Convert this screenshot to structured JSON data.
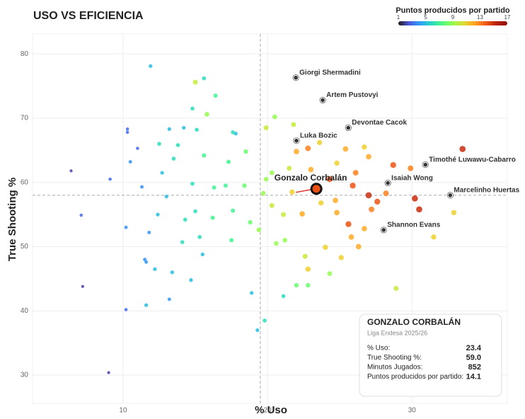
{
  "chart_data": {
    "type": "scatter",
    "title": "USO VS EFICIENCIA",
    "x_label": "% Uso",
    "y_label": "True Shooting %",
    "xlim": [
      3.73,
      36.6
    ],
    "ylim": [
      25.6,
      83.1
    ],
    "xticks": [
      10,
      20,
      30
    ],
    "yticks": [
      30,
      40,
      50,
      60,
      70,
      80
    ],
    "grid": true,
    "reference_lines": {
      "x": 19.5,
      "y": 58.0
    },
    "colorbar": {
      "title": "Puntos producidos por partido",
      "ticks": [
        1,
        5,
        9,
        13,
        17
      ],
      "lim": [
        1,
        17
      ],
      "colormap": "turbo"
    },
    "points": {
      "x": [
        11.9,
        15.6,
        15.0,
        16.4,
        14.8,
        15.8,
        10.3,
        10.3,
        11.0,
        13.2,
        14.2,
        15.1,
        17.8,
        17.6,
        12.5,
        13.8,
        13.5,
        15.6,
        17.3,
        18.5,
        19.9,
        20.5,
        21.8,
        22.0,
        22.8,
        23.6,
        25.4,
        26.7,
        27.0,
        29.9,
        33.5,
        28.7,
        26.1,
        24.3,
        24.8,
        23.0,
        21.5,
        20.3,
        19.9,
        18.4,
        17.1,
        16.3,
        14.8,
        13.0,
        12.7,
        11.3,
        10.5,
        9.1,
        6.4,
        7.1,
        10.2,
        11.8,
        12.4,
        14.3,
        15.0,
        16.2,
        17.6,
        18.8,
        19.4,
        20.3,
        21.1,
        22.4,
        23.7,
        24.8,
        25.6,
        26.7,
        27.2,
        27.6,
        30.5,
        30.2,
        32.9,
        31.5,
        25.8,
        24.0,
        21.2,
        20.6,
        22.6,
        22.8,
        25.1,
        26.3,
        11.5,
        11.6,
        12.2,
        13.4,
        14.7,
        15.5,
        17.5,
        15.3,
        14.1,
        11.6,
        10.2,
        7.2,
        9.0,
        13.2,
        18.9,
        21.1,
        22.0,
        22.8,
        24.3,
        28.9,
        19.8,
        19.3,
        19.7,
        21.7,
        24.7,
        25.9,
        27.0,
        28.2
      ],
      "y": [
        78.1,
        76.2,
        75.6,
        73.5,
        71.5,
        70.6,
        68.3,
        67.8,
        65.3,
        68.3,
        68.5,
        68.2,
        67.6,
        67.8,
        66.0,
        65.8,
        63.7,
        64.2,
        63.2,
        64.8,
        68.5,
        70.2,
        69.0,
        64.8,
        65.3,
        66.2,
        65.2,
        65.5,
        64.0,
        62.2,
        65.2,
        62.7,
        61.5,
        60.5,
        63.0,
        62.0,
        62.2,
        61.5,
        60.5,
        59.5,
        59.5,
        59.2,
        59.8,
        57.8,
        61.5,
        59.3,
        63.2,
        60.5,
        61.8,
        54.9,
        53.0,
        52.2,
        55.0,
        54.2,
        55.5,
        54.5,
        55.6,
        53.8,
        52.6,
        56.4,
        55.0,
        55.1,
        56.8,
        55.3,
        53.5,
        52.8,
        55.8,
        57.0,
        55.8,
        57.5,
        55.3,
        51.5,
        51.5,
        49.9,
        51.0,
        50.5,
        48.5,
        46.5,
        48.3,
        50.0,
        48.0,
        47.6,
        46.5,
        46.0,
        44.8,
        48.8,
        51.0,
        51.5,
        50.7,
        40.9,
        40.2,
        43.8,
        30.4,
        41.8,
        42.8,
        42.3,
        44.0,
        44.0,
        45.8,
        43.5,
        38.5,
        37.0,
        58.3,
        58.5,
        57.2,
        59.5,
        58.0,
        58.3
      ],
      "color_values": [
        5,
        6,
        10,
        7,
        6,
        9,
        3,
        3,
        3,
        5,
        5,
        6,
        5,
        6,
        6,
        6,
        6,
        7,
        7,
        8,
        10,
        9,
        10,
        12,
        13,
        11,
        12,
        11,
        12,
        13,
        15,
        14,
        13,
        14,
        11,
        12,
        10,
        9,
        9,
        8,
        7,
        7,
        6,
        5,
        5,
        4,
        4,
        3,
        2,
        3,
        4,
        4,
        5,
        6,
        6,
        7,
        7,
        8,
        9,
        10,
        10,
        12,
        11,
        12,
        14,
        12,
        13,
        14,
        15,
        15,
        11,
        11,
        12,
        11,
        9,
        9,
        10,
        11,
        11,
        12,
        4,
        4,
        5,
        5,
        5,
        5,
        7,
        6,
        6,
        5,
        3,
        2,
        2,
        4,
        5,
        6,
        8,
        8,
        9,
        10,
        6,
        5,
        9,
        11,
        12,
        14,
        15,
        13
      ]
    },
    "labeled": [
      {
        "name": "Giorgi Shermadini",
        "x": 21.96,
        "y": 76.3
      },
      {
        "name": "Artem Pustovyi",
        "x": 23.82,
        "y": 72.8
      },
      {
        "name": "Devontae Cacok",
        "x": 25.59,
        "y": 68.5
      },
      {
        "name": "Luka Bozic",
        "x": 22.0,
        "y": 66.5
      },
      {
        "name": "Timothé Luwawu-Cabarro",
        "x": 30.93,
        "y": 62.75
      },
      {
        "name": "Isaiah Wong",
        "x": 28.33,
        "y": 59.9
      },
      {
        "name": "Marcelinho Huertas",
        "x": 32.65,
        "y": 58.0
      },
      {
        "name": "Shannon Evans",
        "x": 28.04,
        "y": 52.6
      }
    ],
    "highlight": {
      "name": "Gonzalo Corbalán",
      "x": 23.38,
      "y": 59.0,
      "color_value": 14.1
    }
  },
  "info_box": {
    "title": "GONZALO CORBALÁN",
    "subtitle": "Liga Endesa 2025/26",
    "rows": [
      {
        "label": "% Uso:",
        "value": "23.4"
      },
      {
        "label": "True Shooting %:",
        "value": "59.0"
      },
      {
        "label": "Minutos Jugados:",
        "value": "852"
      },
      {
        "label": "Puntos producidos por partido:",
        "value": "14.1"
      }
    ]
  }
}
